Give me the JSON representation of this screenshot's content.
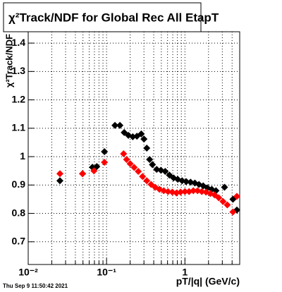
{
  "chart_data": {
    "type": "scatter",
    "title": "χ²Track/NDF for Global Rec All EtapT",
    "ylabel": "χ²Track/NDF",
    "xlabel": "pT/|q| (GeV/c)",
    "footer": "Thu Sep  9 11:50:42 2021",
    "log_x": true,
    "grid": true,
    "xlim": [
      0.01,
      5
    ],
    "ylim": [
      0.62,
      1.44
    ],
    "xticks": [
      {
        "value": 0.01,
        "label": "10⁻²"
      },
      {
        "value": 0.1,
        "label": "10⁻¹"
      },
      1
    ],
    "xminorticks": [
      0.02,
      0.03,
      0.04,
      0.05,
      0.06,
      0.07,
      0.08,
      0.09,
      0.2,
      0.3,
      0.4,
      0.5,
      0.6,
      0.7,
      0.8,
      0.9,
      2,
      3,
      4
    ],
    "yticks": [
      0.7,
      0.8,
      0.9,
      1,
      1.1,
      1.2,
      1.3,
      1.4
    ],
    "series": [
      {
        "color": "#000000",
        "x": [
          0.0254,
          0.0494,
          0.066,
          0.075,
          0.094,
          0.128,
          0.148,
          0.168,
          0.19,
          0.216,
          0.244,
          0.277,
          0.3,
          0.326,
          0.354,
          0.385,
          0.436,
          0.494,
          0.56,
          0.634,
          0.717,
          0.81,
          0.92,
          1.04,
          1.18,
          1.34,
          1.51,
          1.71,
          1.94,
          2.2,
          2.49,
          3.2,
          4.1,
          4.6
        ],
        "values": [
          0.915,
          0.94,
          0.9625,
          0.965,
          1.0175,
          1.11,
          1.11,
          1.085,
          1.075,
          1.07,
          1.072,
          1.08,
          1.062,
          1.03,
          0.99,
          0.972,
          0.955,
          0.952,
          0.948,
          0.935,
          0.925,
          0.92,
          0.915,
          0.912,
          0.91,
          0.907,
          0.902,
          0.897,
          0.89,
          0.885,
          0.88,
          0.892,
          0.85,
          0.812
        ]
      },
      {
        "color": "#ff0000",
        "x": [
          0.0254,
          0.0494,
          0.069,
          0.094,
          0.165,
          0.18,
          0.2,
          0.225,
          0.254,
          0.288,
          0.326,
          0.37,
          0.418,
          0.473,
          0.537,
          0.608,
          0.69,
          0.78,
          0.88,
          1.0,
          1.13,
          1.28,
          1.45,
          1.64,
          1.86,
          2.11,
          2.39,
          2.7,
          3.06,
          3.47,
          4.1,
          4.6
        ],
        "values": [
          0.94,
          0.94,
          0.95,
          0.98,
          1.01,
          0.99,
          0.975,
          0.962,
          0.948,
          0.93,
          0.915,
          0.902,
          0.892,
          0.885,
          0.88,
          0.877,
          0.875,
          0.872,
          0.875,
          0.877,
          0.877,
          0.88,
          0.88,
          0.877,
          0.875,
          0.87,
          0.865,
          0.855,
          0.842,
          0.83,
          0.805,
          0.86
        ]
      }
    ]
  }
}
